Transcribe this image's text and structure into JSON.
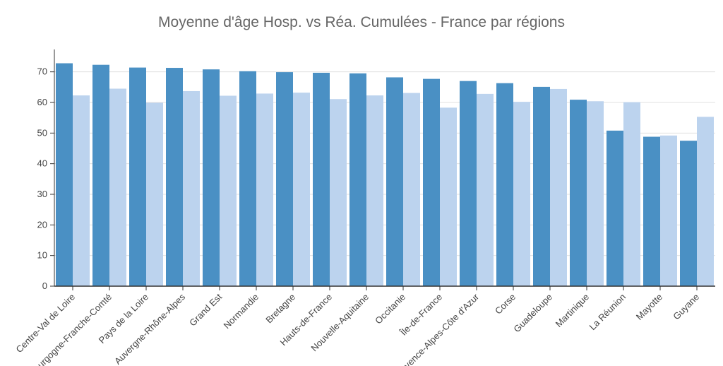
{
  "chart_data": {
    "type": "bar",
    "title": "Moyenne d'âge Hosp. vs Réa. Cumulées - France par régions",
    "xlabel": "",
    "ylabel": "",
    "ylim": [
      0,
      75
    ],
    "yticks": [
      0,
      10,
      20,
      30,
      40,
      50,
      60,
      70
    ],
    "grid": true,
    "categories": [
      "Centre-Val de Loire",
      "Bourgogne-Franche-Comté",
      "Pays de la Loire",
      "Auvergne-Rhône-Alpes",
      "Grand Est",
      "Normandie",
      "Bretagne",
      "Hauts-de-France",
      "Nouvelle-Aquitaine",
      "Occitanie",
      "Île-de-France",
      "Provence-Alpes-Côte d'Azur",
      "Corse",
      "Guadeloupe",
      "Martinique",
      "La Réunion",
      "Mayotte",
      "Guyane"
    ],
    "series": [
      {
        "values": [
          72.8,
          72.3,
          71.4,
          71.3,
          70.8,
          70.2,
          69.9,
          69.7,
          69.5,
          68.2,
          67.7,
          67.0,
          66.3,
          65.1,
          60.9,
          50.8,
          48.8,
          47.5
        ],
        "color": "#4a90c4"
      },
      {
        "values": [
          62.3,
          64.5,
          59.9,
          63.7,
          62.2,
          62.9,
          63.2,
          61.1,
          62.3,
          63.1,
          58.3,
          62.8,
          60.2,
          64.4,
          60.4,
          60.1,
          49.2,
          55.3
        ],
        "color": "#bcd3ee"
      }
    ]
  }
}
